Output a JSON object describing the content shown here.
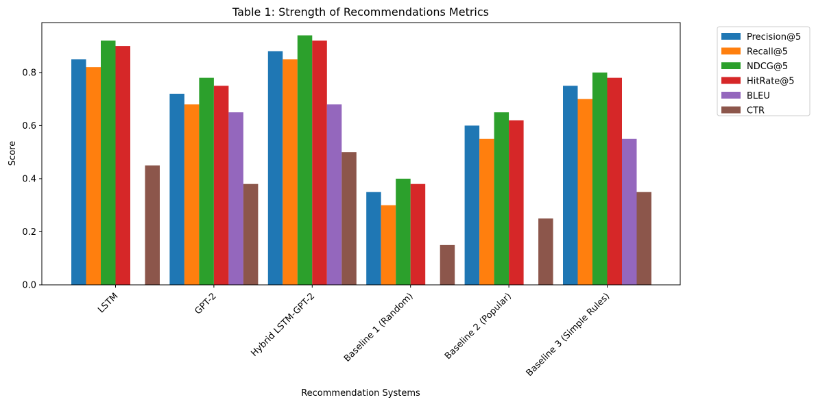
{
  "chart_data": {
    "type": "bar",
    "title": "Table 1: Strength of Recommendations Metrics",
    "xlabel": "Recommendation Systems",
    "ylabel": "Score",
    "ylim": [
      0,
      0.988
    ],
    "yticks": [
      "0.0",
      "0.2",
      "0.4",
      "0.6",
      "0.8"
    ],
    "ytick_values": [
      0,
      0.2,
      0.4,
      0.6,
      0.8
    ],
    "grid": false,
    "legend_position": "outside-top-right",
    "categories": [
      "LSTM",
      "GPT-2",
      "Hybrid LSTM-GPT-2",
      "Baseline 1 (Random)",
      "Baseline 2 (Popular)",
      "Baseline 3 (Simple Rules)"
    ],
    "series": [
      {
        "name": "Precision@5",
        "color": "#1f77b4",
        "values": [
          0.85,
          0.72,
          0.88,
          0.35,
          0.6,
          0.75
        ]
      },
      {
        "name": "Recall@5",
        "color": "#ff7f0e",
        "values": [
          0.82,
          0.68,
          0.85,
          0.3,
          0.55,
          0.7
        ]
      },
      {
        "name": "NDCG@5",
        "color": "#2ca02c",
        "values": [
          0.92,
          0.78,
          0.94,
          0.4,
          0.65,
          0.8
        ]
      },
      {
        "name": "HitRate@5",
        "color": "#d62728",
        "values": [
          0.9,
          0.75,
          0.92,
          0.38,
          0.62,
          0.78
        ]
      },
      {
        "name": "BLEU",
        "color": "#9467bd",
        "values": [
          null,
          0.65,
          0.68,
          null,
          null,
          0.55
        ]
      },
      {
        "name": "CTR",
        "color": "#8c564b",
        "values": [
          0.45,
          0.38,
          0.5,
          0.15,
          0.25,
          0.35
        ]
      }
    ]
  }
}
